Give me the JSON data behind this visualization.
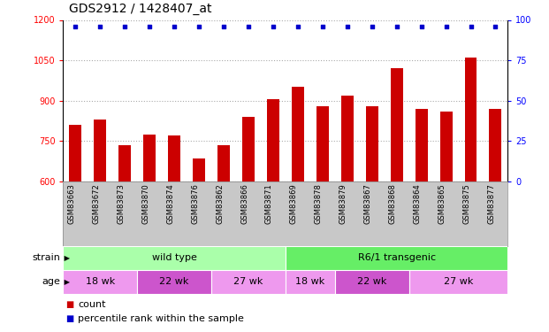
{
  "title": "GDS2912 / 1428407_at",
  "samples": [
    "GSM83663",
    "GSM83672",
    "GSM83873",
    "GSM83870",
    "GSM83874",
    "GSM83876",
    "GSM83862",
    "GSM83866",
    "GSM83871",
    "GSM83869",
    "GSM83878",
    "GSM83879",
    "GSM83867",
    "GSM83868",
    "GSM83864",
    "GSM83865",
    "GSM83875",
    "GSM83877"
  ],
  "counts": [
    810,
    830,
    735,
    775,
    770,
    685,
    735,
    840,
    905,
    950,
    880,
    920,
    880,
    1020,
    870,
    860,
    1060,
    870
  ],
  "bar_color": "#cc0000",
  "dot_color": "#0000cc",
  "ylim_left": [
    600,
    1200
  ],
  "ylim_right": [
    0,
    100
  ],
  "yticks_left": [
    600,
    750,
    900,
    1050,
    1200
  ],
  "yticks_right": [
    0,
    25,
    50,
    75,
    100
  ],
  "strain_labels": [
    {
      "label": "wild type",
      "start": 0,
      "end": 9,
      "color": "#aaffaa"
    },
    {
      "label": "R6/1 transgenic",
      "start": 9,
      "end": 18,
      "color": "#66ee66"
    }
  ],
  "age_groups": [
    {
      "label": "18 wk",
      "start": 0,
      "end": 3,
      "color": "#ee99ee"
    },
    {
      "label": "22 wk",
      "start": 3,
      "end": 6,
      "color": "#cc55cc"
    },
    {
      "label": "27 wk",
      "start": 6,
      "end": 9,
      "color": "#ee99ee"
    },
    {
      "label": "18 wk",
      "start": 9,
      "end": 11,
      "color": "#ee99ee"
    },
    {
      "label": "22 wk",
      "start": 11,
      "end": 14,
      "color": "#cc55cc"
    },
    {
      "label": "27 wk",
      "start": 14,
      "end": 18,
      "color": "#ee99ee"
    }
  ],
  "xlabel_row_color": "#c8c8c8",
  "legend_count_color": "#cc0000",
  "legend_pct_color": "#0000cc",
  "bar_width": 0.5,
  "dotted_grid_color": "#aaaaaa",
  "title_fontsize": 10,
  "tick_fontsize": 7,
  "sample_fontsize": 6,
  "strain_fontsize": 8,
  "age_fontsize": 8,
  "legend_fontsize": 8
}
